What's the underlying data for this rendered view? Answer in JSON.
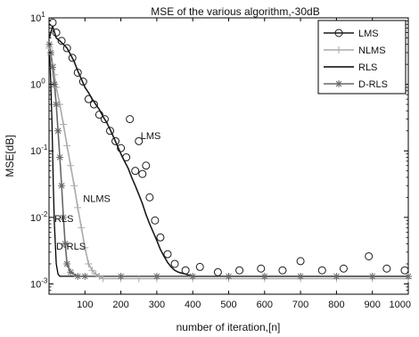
{
  "chart_data": {
    "type": "line",
    "title": "MSE of the various algorithm,-30dB",
    "xlabel": "number of iteration,[n]",
    "ylabel": "MSE[dB]",
    "xlim": [
      0,
      1000
    ],
    "ylim": [
      0.0007,
      10
    ],
    "y_scale": "log",
    "grid": false,
    "legend_position": "top-right",
    "x_ticks": [
      {
        "value": 100,
        "label": "100"
      },
      {
        "value": 200,
        "label": "200"
      },
      {
        "value": 300,
        "label": "300"
      },
      {
        "value": 400,
        "label": "400"
      },
      {
        "value": 500,
        "label": "500"
      },
      {
        "value": 600,
        "label": "600"
      },
      {
        "value": 700,
        "label": "700"
      },
      {
        "value": 800,
        "label": "800"
      },
      {
        "value": 900,
        "label": "900"
      },
      {
        "value": 1000,
        "label": "1000"
      }
    ],
    "y_ticks": [
      {
        "value": 0.001,
        "base": "10",
        "exp": "-3"
      },
      {
        "value": 0.01,
        "base": "10",
        "exp": "-2"
      },
      {
        "value": 0.1,
        "base": "10",
        "exp": "-1"
      },
      {
        "value": 1,
        "base": "10",
        "exp": "0"
      },
      {
        "value": 10,
        "base": "10",
        "exp": "1"
      }
    ],
    "series": [
      {
        "name": "LMS",
        "color": "#1a1a1a",
        "marker": "circle",
        "x": [
          1,
          10,
          20,
          30,
          40,
          50,
          60,
          70,
          80,
          90,
          100,
          110,
          120,
          130,
          140,
          150,
          160,
          170,
          180,
          190,
          200,
          210,
          220,
          230,
          240,
          250,
          260,
          270,
          280,
          290,
          300,
          310,
          320,
          330,
          340,
          350,
          360,
          380,
          400,
          450,
          500,
          550,
          600,
          650,
          700,
          750,
          800,
          850,
          900,
          950,
          1000
        ],
        "values": [
          5,
          7.5,
          5,
          4.5,
          4,
          3.5,
          2.8,
          2.2,
          1.6,
          1.2,
          0.9,
          0.75,
          0.6,
          0.5,
          0.42,
          0.33,
          0.27,
          0.21,
          0.16,
          0.12,
          0.09,
          0.07,
          0.055,
          0.04,
          0.03,
          0.022,
          0.016,
          0.011,
          0.008,
          0.006,
          0.0045,
          0.0033,
          0.0026,
          0.0021,
          0.0018,
          0.0016,
          0.0015,
          0.0014,
          0.0013,
          0.0013,
          0.0013,
          0.0013,
          0.0013,
          0.0013,
          0.0013,
          0.0013,
          0.0013,
          0.0013,
          0.0013,
          0.0013,
          0.0013
        ],
        "markers": [
          {
            "x": 10,
            "y": 8.5
          },
          {
            "x": 20,
            "y": 6
          },
          {
            "x": 35,
            "y": 4.5
          },
          {
            "x": 50,
            "y": 3.5
          },
          {
            "x": 65,
            "y": 2.5
          },
          {
            "x": 80,
            "y": 1.5
          },
          {
            "x": 95,
            "y": 1.1
          },
          {
            "x": 110,
            "y": 0.6
          },
          {
            "x": 125,
            "y": 0.5
          },
          {
            "x": 140,
            "y": 0.35
          },
          {
            "x": 155,
            "y": 0.3
          },
          {
            "x": 170,
            "y": 0.2
          },
          {
            "x": 185,
            "y": 0.14
          },
          {
            "x": 200,
            "y": 0.11
          },
          {
            "x": 215,
            "y": 0.08
          },
          {
            "x": 225,
            "y": 0.3
          },
          {
            "x": 240,
            "y": 0.05
          },
          {
            "x": 250,
            "y": 0.14
          },
          {
            "x": 260,
            "y": 0.045
          },
          {
            "x": 270,
            "y": 0.06
          },
          {
            "x": 280,
            "y": 0.02
          },
          {
            "x": 295,
            "y": 0.009
          },
          {
            "x": 310,
            "y": 0.005
          },
          {
            "x": 330,
            "y": 0.0028
          },
          {
            "x": 350,
            "y": 0.002
          },
          {
            "x": 380,
            "y": 0.0016
          },
          {
            "x": 420,
            "y": 0.0018
          },
          {
            "x": 470,
            "y": 0.0015
          },
          {
            "x": 530,
            "y": 0.0016
          },
          {
            "x": 590,
            "y": 0.0017
          },
          {
            "x": 650,
            "y": 0.0016
          },
          {
            "x": 700,
            "y": 0.0022
          },
          {
            "x": 760,
            "y": 0.0016
          },
          {
            "x": 820,
            "y": 0.0017
          },
          {
            "x": 890,
            "y": 0.0026
          },
          {
            "x": 940,
            "y": 0.0017
          },
          {
            "x": 990,
            "y": 0.0016
          }
        ]
      },
      {
        "name": "NLMS",
        "color": "#aaaaaa",
        "marker": "plus",
        "x": [
          1,
          5,
          10,
          15,
          20,
          30,
          40,
          50,
          60,
          70,
          80,
          90,
          100,
          110,
          120,
          130,
          140,
          150,
          200,
          250,
          300,
          400,
          500,
          600,
          700,
          800,
          900,
          1000
        ],
        "values": [
          3.5,
          2.8,
          2,
          1.4,
          0.9,
          0.5,
          0.25,
          0.12,
          0.06,
          0.03,
          0.014,
          0.007,
          0.0035,
          0.002,
          0.0016,
          0.0014,
          0.0013,
          0.0012,
          0.0012,
          0.0012,
          0.0012,
          0.0012,
          0.0012,
          0.0012,
          0.0012,
          0.0012,
          0.0012,
          0.0012
        ]
      },
      {
        "name": "RLS",
        "color": "#000000",
        "marker": "none",
        "x": [
          1,
          3,
          5,
          8,
          10,
          12,
          15,
          20,
          25,
          30,
          40,
          60,
          100,
          200,
          300,
          400,
          500,
          600,
          700,
          800,
          900,
          1000
        ],
        "values": [
          3,
          2,
          1,
          0.3,
          0.1,
          0.03,
          0.008,
          0.002,
          0.0014,
          0.0013,
          0.0013,
          0.0013,
          0.0013,
          0.0013,
          0.0013,
          0.0013,
          0.0013,
          0.0013,
          0.0013,
          0.0013,
          0.0013,
          0.0013
        ]
      },
      {
        "name": "D-RLS",
        "color": "#666666",
        "marker": "star",
        "x": [
          1,
          5,
          10,
          15,
          20,
          25,
          30,
          35,
          40,
          45,
          50,
          60,
          80,
          100,
          200,
          300,
          400,
          500,
          600,
          700,
          800,
          900,
          1000
        ],
        "values": [
          4,
          3,
          1.8,
          1,
          0.5,
          0.2,
          0.08,
          0.03,
          0.01,
          0.004,
          0.002,
          0.0015,
          0.0013,
          0.0013,
          0.0013,
          0.0013,
          0.0013,
          0.0013,
          0.0013,
          0.0013,
          0.0013,
          0.0013,
          0.0013
        ]
      }
    ],
    "annotations": [
      {
        "text": "LMS",
        "x": 255,
        "y": 0.15
      },
      {
        "text": "NLMS",
        "x": 95,
        "y": 0.017
      },
      {
        "text": "RLS",
        "x": 15,
        "y": 0.0085
      },
      {
        "text": "D-RLS",
        "x": 20,
        "y": 0.0033
      }
    ]
  }
}
